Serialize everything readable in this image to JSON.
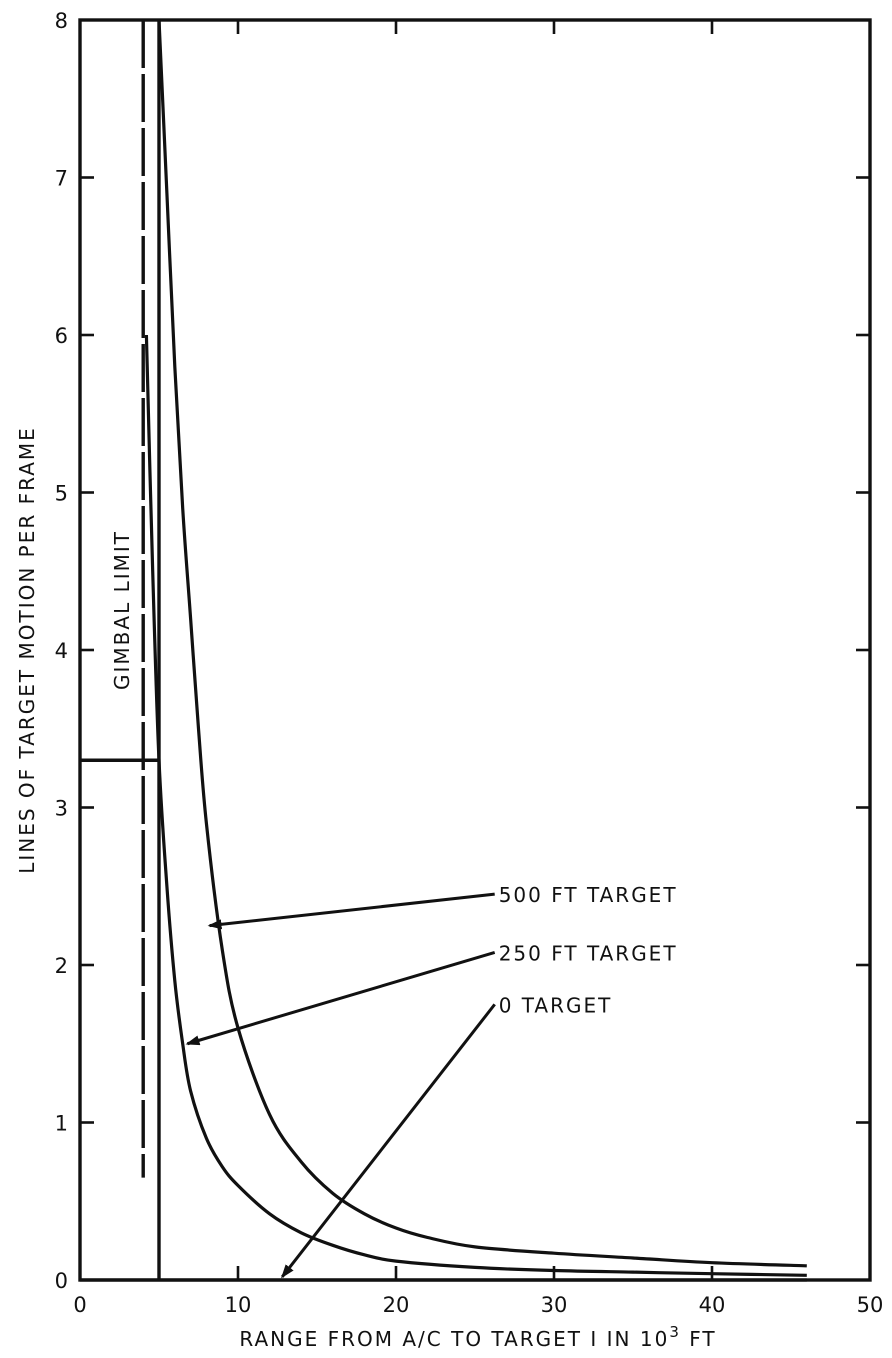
{
  "chart_data": {
    "type": "line",
    "title": "",
    "xlabel": "RANGE FROM A/C TO TARGET I IN 10",
    "xlabel_sup": "3",
    "xlabel_unit": "FT",
    "ylabel": "LINES OF TARGET MOTION PER FRAME",
    "xlim": [
      0,
      50
    ],
    "ylim": [
      0,
      8
    ],
    "xticks": [
      0,
      10,
      20,
      30,
      40,
      50
    ],
    "yticks": [
      0,
      1,
      2,
      3,
      4,
      5,
      6,
      7,
      8
    ],
    "grid": false,
    "series": [
      {
        "name": "500 FT TARGET",
        "x": [
          5,
          5.5,
          6,
          6.5,
          7,
          7.5,
          8,
          9,
          10,
          12,
          14,
          16,
          18,
          20,
          22,
          25,
          30,
          35,
          40,
          46
        ],
        "y": [
          8,
          6.9,
          5.8,
          4.9,
          4.2,
          3.5,
          2.9,
          2.1,
          1.6,
          1.05,
          0.75,
          0.55,
          0.42,
          0.33,
          0.27,
          0.21,
          0.17,
          0.14,
          0.11,
          0.09
        ]
      },
      {
        "name": "250 FT TARGET",
        "x": [
          4.2,
          4.6,
          5,
          5.5,
          6,
          6.5,
          7,
          8,
          9,
          10,
          12,
          14,
          16,
          18,
          20,
          25,
          30,
          35,
          40,
          46
        ],
        "y": [
          6.0,
          4.5,
          3.3,
          2.5,
          1.9,
          1.5,
          1.2,
          0.9,
          0.72,
          0.6,
          0.42,
          0.3,
          0.22,
          0.16,
          0.12,
          0.08,
          0.06,
          0.05,
          0.04,
          0.03
        ]
      },
      {
        "name": "0 TARGET",
        "x": [
          0,
          10,
          20,
          30,
          40,
          46
        ],
        "y": [
          0,
          0,
          0,
          0,
          0,
          0
        ]
      }
    ],
    "reference_lines": [
      {
        "type": "vertical",
        "x": 5,
        "y_range": [
          0,
          8
        ],
        "style": "solid"
      },
      {
        "type": "vertical",
        "x": 4,
        "y_range": [
          0.65,
          8
        ],
        "style": "dashed"
      },
      {
        "type": "horizontal",
        "y": 3.3,
        "x_range": [
          0,
          5
        ],
        "style": "solid"
      }
    ],
    "annotations": [
      {
        "text": "GIMBAL LIMIT",
        "rotation": -90
      },
      {
        "text": "500 FT TARGET",
        "arrow_to": [
          8.2,
          2.25
        ],
        "text_at": [
          26.5,
          2.45
        ]
      },
      {
        "text": "250 FT TARGET",
        "arrow_to": [
          6.8,
          1.5
        ],
        "text_at": [
          26.5,
          2.08
        ]
      },
      {
        "text": "0 TARGET",
        "arrow_to": [
          12.8,
          0.02
        ],
        "text_at": [
          26.5,
          1.75
        ]
      }
    ]
  }
}
